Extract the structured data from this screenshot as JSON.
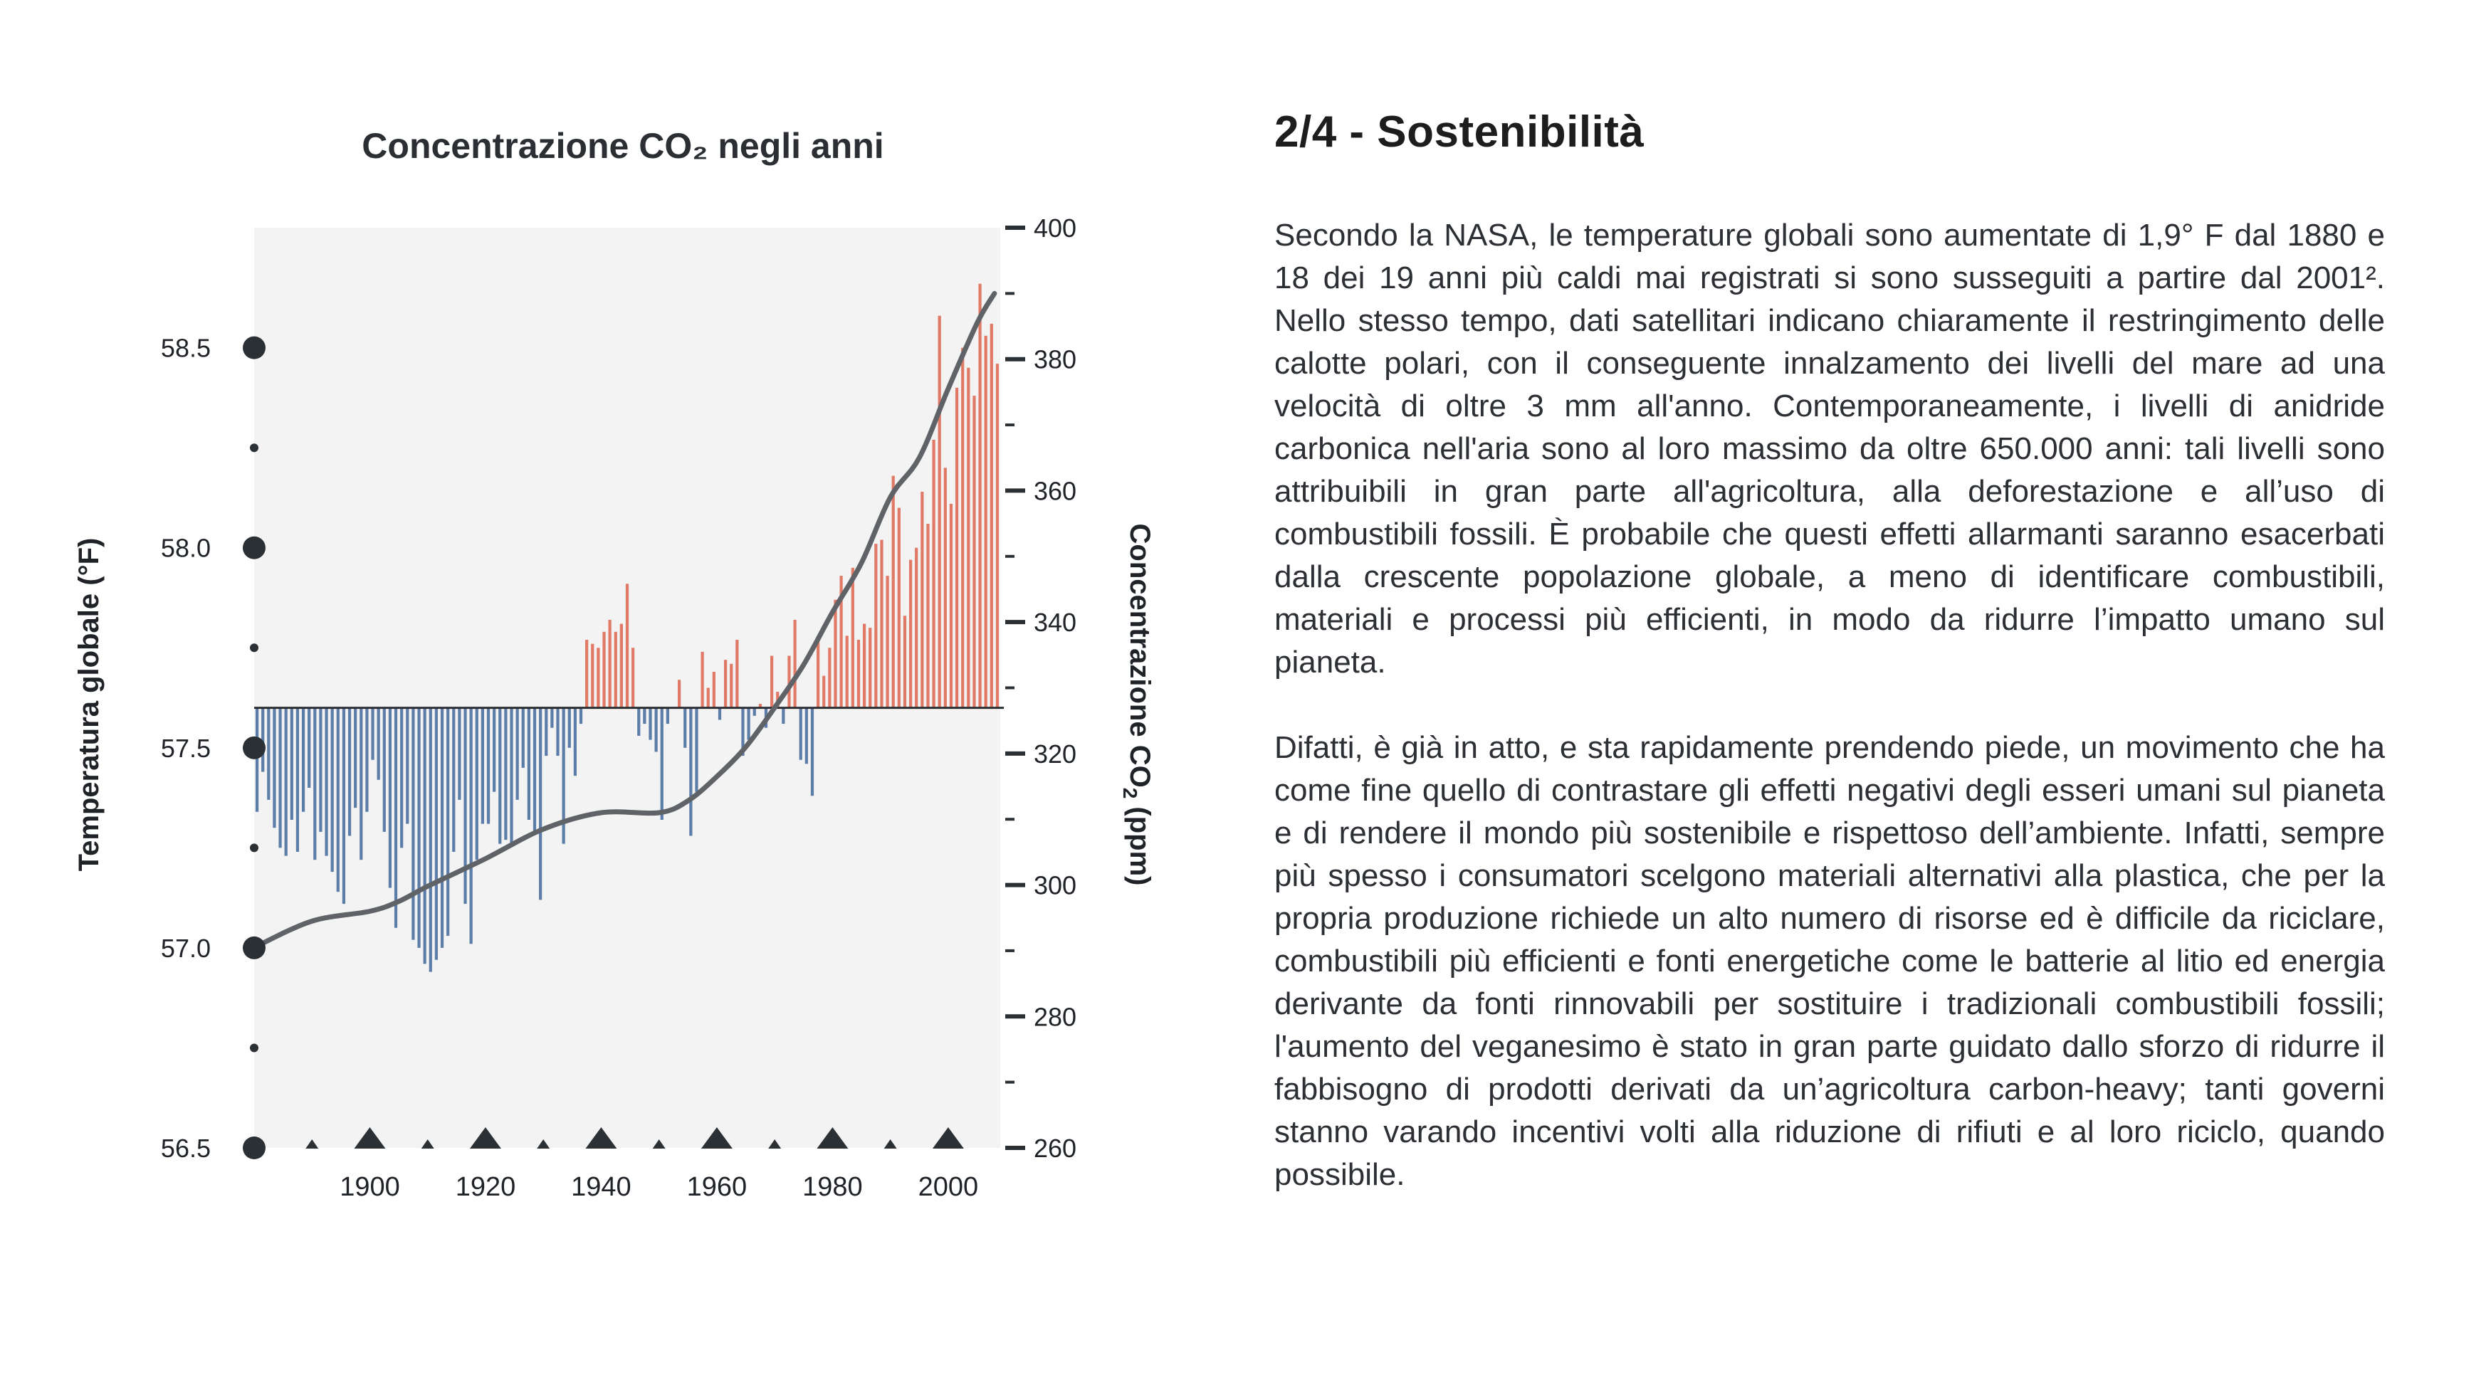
{
  "chart_data": {
    "type": "bar",
    "title": "Concentrazione CO₂ negli anni",
    "ylabel_left": "Temperatura globale (°F)",
    "ylabel_right": "Concentrazione CO",
    "ylabel_right_sub": "2",
    "ylabel_right_unit": " (ppm)",
    "x_ticks": [
      1900,
      1920,
      1940,
      1960,
      1980,
      2000
    ],
    "left_axis": {
      "ticks": [
        56.5,
        57.0,
        57.5,
        58.0,
        58.5
      ],
      "ylim": [
        56.5,
        58.8
      ]
    },
    "right_axis": {
      "ticks": [
        260,
        280,
        300,
        320,
        340,
        360,
        380,
        400
      ],
      "ylim": [
        260,
        400
      ]
    },
    "xlim": [
      1880,
      2009
    ],
    "bar_colors": {
      "positive": "#e07a67",
      "negative": "#5b7da8"
    },
    "line_color": "#5f6368",
    "series": [
      {
        "name": "",
        "type": "bar",
        "axis": "left",
        "baseline": 57.6,
        "x": [
          1880,
          1881,
          1882,
          1883,
          1884,
          1885,
          1886,
          1887,
          1888,
          1889,
          1890,
          1891,
          1892,
          1893,
          1894,
          1895,
          1896,
          1897,
          1898,
          1899,
          1900,
          1901,
          1902,
          1903,
          1904,
          1905,
          1906,
          1907,
          1908,
          1909,
          1910,
          1911,
          1912,
          1913,
          1914,
          1915,
          1916,
          1917,
          1918,
          1919,
          1920,
          1921,
          1922,
          1923,
          1924,
          1925,
          1926,
          1927,
          1928,
          1929,
          1930,
          1931,
          1932,
          1933,
          1934,
          1935,
          1936,
          1937,
          1938,
          1939,
          1940,
          1941,
          1942,
          1943,
          1944,
          1945,
          1946,
          1947,
          1948,
          1949,
          1950,
          1951,
          1952,
          1953,
          1954,
          1955,
          1956,
          1957,
          1958,
          1959,
          1960,
          1961,
          1962,
          1963,
          1964,
          1965,
          1966,
          1967,
          1968,
          1969,
          1970,
          1971,
          1972,
          1973,
          1974,
          1975,
          1976,
          1977,
          1978,
          1979,
          1980,
          1981,
          1982,
          1983,
          1984,
          1985,
          1986,
          1987,
          1988,
          1989,
          1990,
          1991,
          1992,
          1993,
          1994,
          1995,
          1996,
          1997,
          1998,
          1999,
          2000,
          2001,
          2002,
          2003,
          2004,
          2005,
          2006,
          2007,
          2008
        ],
        "values": [
          57.34,
          57.44,
          57.37,
          57.3,
          57.25,
          57.23,
          57.32,
          57.24,
          57.34,
          57.4,
          57.22,
          57.29,
          57.23,
          57.19,
          57.14,
          57.11,
          57.28,
          57.35,
          57.22,
          57.34,
          57.47,
          57.42,
          57.29,
          57.15,
          57.05,
          57.25,
          57.31,
          57.02,
          57.0,
          56.96,
          56.94,
          56.97,
          57.0,
          57.03,
          57.24,
          57.37,
          57.11,
          57.01,
          57.22,
          57.31,
          57.31,
          57.39,
          57.26,
          57.27,
          57.26,
          57.37,
          57.45,
          57.32,
          57.29,
          57.12,
          57.48,
          57.55,
          57.48,
          57.26,
          57.5,
          57.43,
          57.56,
          57.77,
          57.76,
          57.75,
          57.79,
          57.82,
          57.79,
          57.81,
          57.91,
          57.75,
          57.53,
          57.56,
          57.52,
          57.49,
          57.32,
          57.56,
          57.6,
          57.67,
          57.5,
          57.28,
          57.39,
          57.74,
          57.65,
          57.69,
          57.57,
          57.72,
          57.71,
          57.77,
          57.48,
          57.52,
          57.58,
          57.61,
          57.55,
          57.73,
          57.64,
          57.56,
          57.73,
          57.82,
          57.47,
          57.46,
          57.38,
          57.77,
          57.68,
          57.75,
          57.87,
          57.93,
          57.78,
          57.95,
          57.77,
          57.81,
          57.8,
          58.01,
          58.02,
          57.93,
          58.18,
          58.1,
          57.83,
          57.97,
          58.0,
          58.14,
          58.06,
          58.27,
          58.58,
          58.2,
          58.11,
          58.4,
          58.5,
          58.45,
          58.38,
          58.66,
          58.53,
          58.56,
          58.46
        ]
      },
      {
        "name": "",
        "type": "line",
        "axis": "right",
        "x": [
          1880,
          1890,
          1900,
          1905,
          1910,
          1920,
          1930,
          1940,
          1950,
          1955,
          1960,
          1965,
          1970,
          1975,
          1980,
          1985,
          1990,
          1995,
          2000,
          2005,
          2008
        ],
        "values": [
          290.5,
          294.5,
          296.0,
          297.5,
          299.8,
          304.0,
          308.5,
          311.0,
          311.0,
          312.8,
          316.5,
          321.0,
          327.0,
          333.5,
          341.5,
          349.0,
          359.0,
          365.0,
          375.5,
          385.5,
          390.0
        ]
      }
    ]
  },
  "article": {
    "heading": "2/4 - Sostenibilità",
    "paragraph_1": "Secondo la NASA, le temperature globali sono aumentate di 1,9° F dal 1880 e 18 dei 19 anni più caldi mai registrati si sono susseguiti a partire dal 2001². Nello stesso tempo, dati satellitari indicano chiaramente il restringimento delle calotte polari, con il conseguente innalzamento dei livelli del mare ad una velocità di oltre 3 mm all'anno. Contemporaneamente, i livelli di anidride carbonica nell'aria sono al loro massimo da oltre 650.000 anni: tali livelli sono attribuibili in gran parte all'agricoltura, alla deforestazione e all’uso di combustibili fossili. È probabile che questi effetti allarmanti saranno esacerbati dalla crescente popolazione globale, a meno di  identificare combustibili, materiali e processi più efficienti, in modo da ridurre l’impatto umano sul pianeta.",
    "paragraph_2": "Difatti, è già in atto, e sta rapidamente prendendo piede, un movimento che ha come fine quello di contrastare gli effetti negativi degli esseri umani sul pianeta e di rendere il mondo più sostenibile e rispettoso dell’ambiente.  Infatti, sempre più spesso i consumatori scelgono materiali alternativi alla plastica, che per la propria produzione richiede un alto numero di risorse ed è difficile da riciclare, combustibili più efficienti e fonti energetiche come le batterie al litio ed energia derivante da fonti rinnovabili per sostituire i tradizionali combustibili fossili; l'aumento del veganesimo è stato in gran parte guidato dallo sforzo di ridurre il fabbisogno di prodotti derivati da un’agricoltura carbon-heavy; tanti governi stanno varando incentivi volti alla riduzione di rifiuti e al loro riciclo, quando possibile."
  }
}
